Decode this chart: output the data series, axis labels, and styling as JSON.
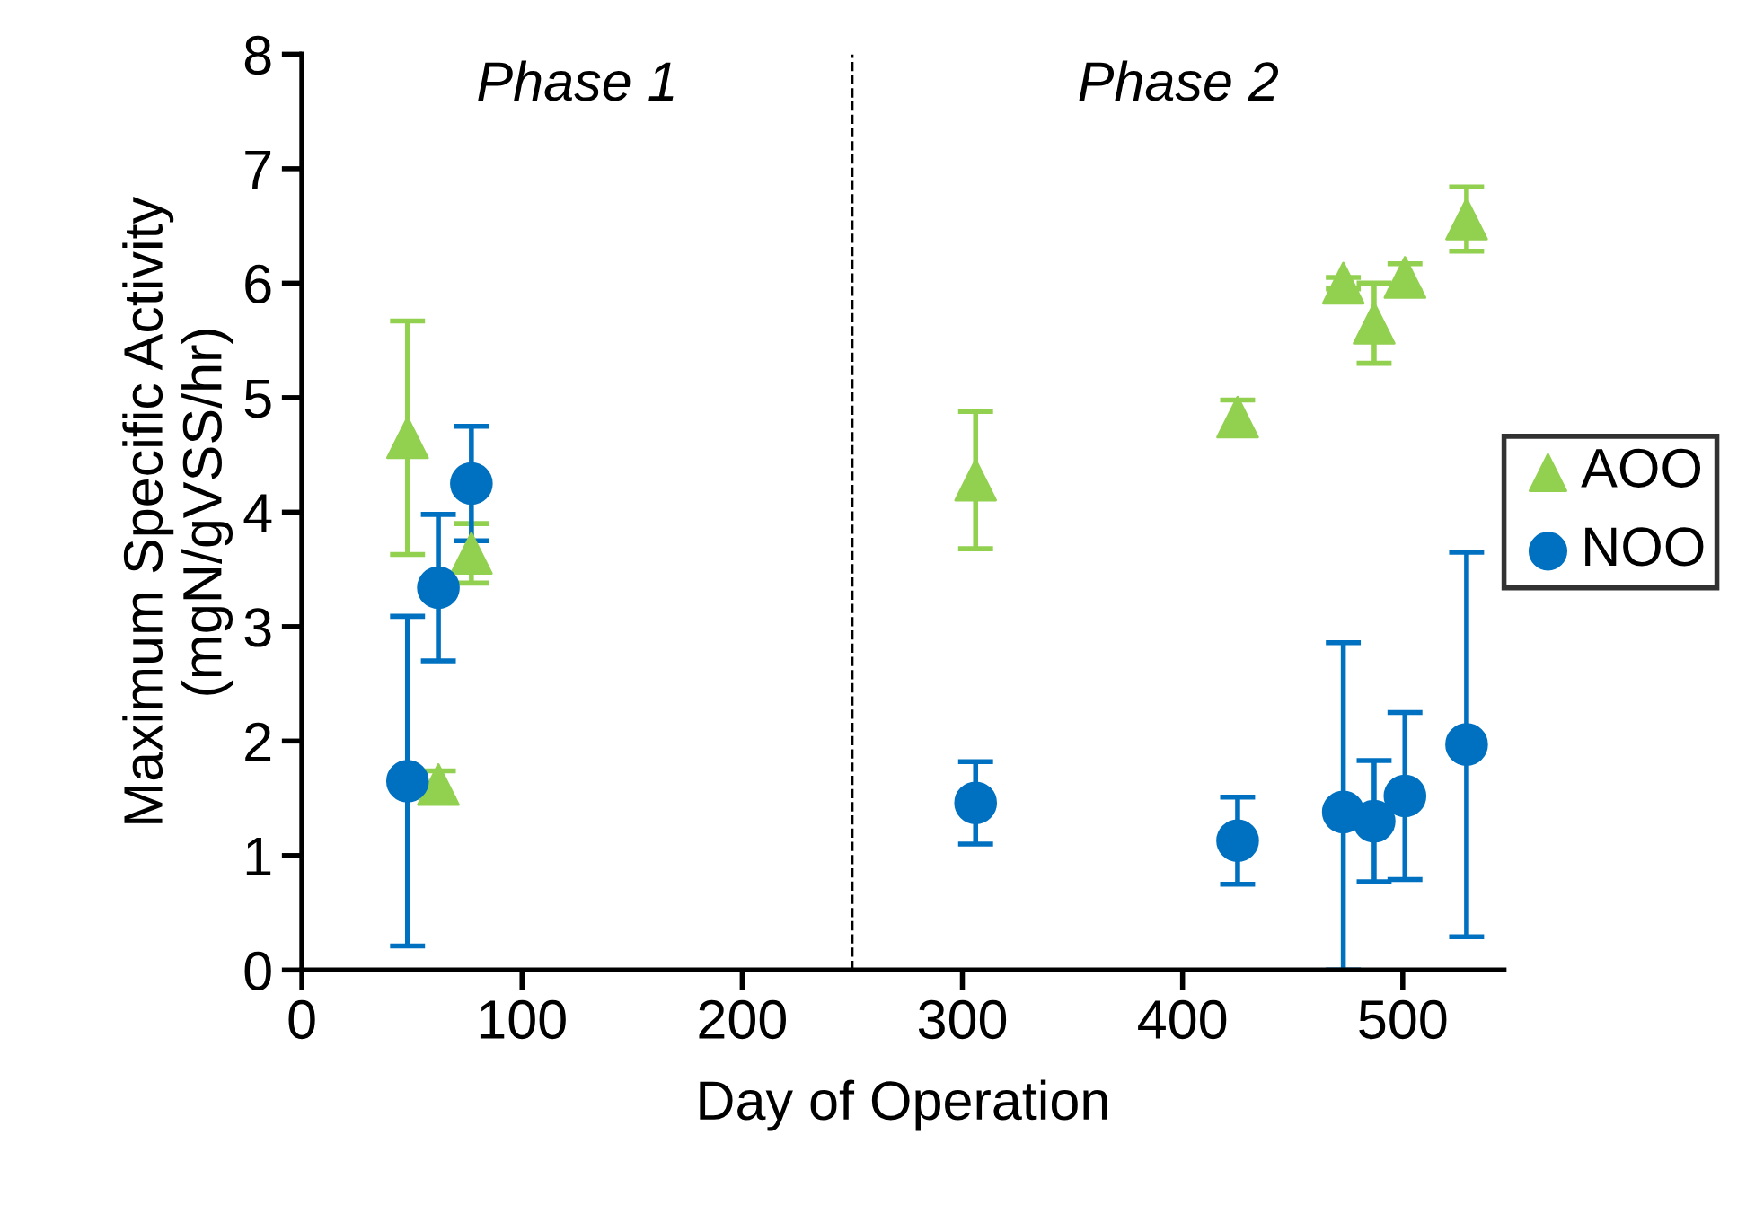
{
  "chart_data": {
    "type": "scatter",
    "xlabel": "Day of Operation",
    "ylabel": "Maximum Specific Activity\n(mgN/gVSS/hr)",
    "xlim": [
      0,
      546
    ],
    "xticks": [
      0,
      100,
      200,
      300,
      400,
      500
    ],
    "ylim": [
      0,
      8
    ],
    "yticks": [
      0,
      1,
      2,
      3,
      4,
      5,
      6,
      7,
      8
    ],
    "grid": false,
    "legend": "right",
    "ref_lines": [
      {
        "axis": "x",
        "value": 250,
        "line_style": "dashed",
        "color": "#000000"
      }
    ],
    "annotations": [
      "Phase 1",
      "Phase 2"
    ],
    "series": [
      {
        "name": "AOO",
        "color": "#92d050",
        "marker": "triangle",
        "x": [
          48,
          62,
          77,
          306,
          425,
          473,
          487,
          501,
          529
        ],
        "values": [
          4.65,
          1.62,
          3.64,
          4.28,
          4.83,
          6.0,
          5.65,
          6.05,
          6.56
        ],
        "errors": [
          1.02,
          0.12,
          0.26,
          0.6,
          0.15,
          0.05,
          0.35,
          0.12,
          0.28
        ]
      },
      {
        "name": "NOO",
        "color": "#0070c0",
        "marker": "circle",
        "x": [
          48,
          62,
          77,
          306,
          425,
          473,
          487,
          501,
          529
        ],
        "values": [
          1.65,
          3.34,
          4.25,
          1.46,
          1.13,
          1.38,
          1.3,
          1.52,
          1.97
        ],
        "errors": [
          1.44,
          0.64,
          0.5,
          0.36,
          0.38,
          [
            0,
            2.86
          ],
          0.53,
          0.73,
          1.68
        ]
      }
    ]
  }
}
